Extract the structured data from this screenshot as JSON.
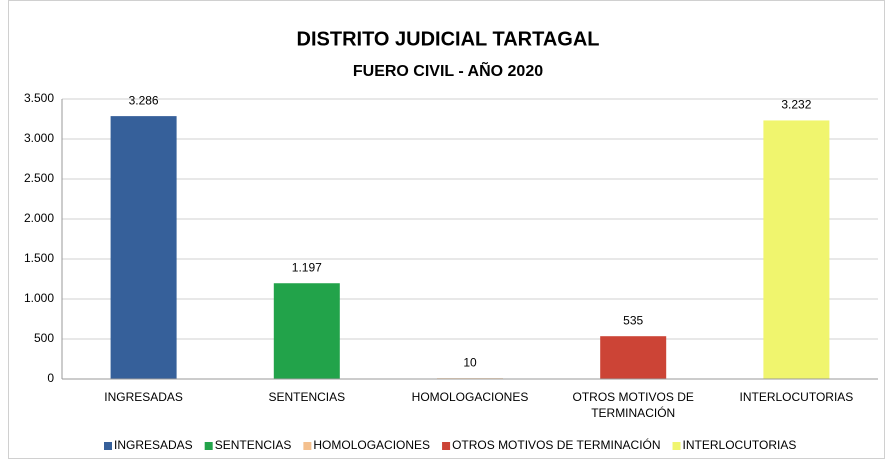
{
  "chart_data": {
    "type": "bar",
    "title": "DISTRITO JUDICIAL TARTAGAL",
    "subtitle": "FUERO CIVIL - AÑO 2020",
    "categories": [
      "INGRESADAS",
      "SENTENCIAS",
      "HOMOLOGACIONES",
      "OTROS MOTIVOS DE TERMINACIÓN",
      "INTERLOCUTORIAS"
    ],
    "values": [
      3286,
      1197,
      10,
      535,
      3232
    ],
    "value_labels": [
      "3.286",
      "1.197",
      "10",
      "535",
      "3.232"
    ],
    "colors": [
      "#36609a",
      "#22a34a",
      "#f4c08e",
      "#cc4436",
      "#f0f56e"
    ],
    "ylim": [
      0,
      3500
    ],
    "yticks": [
      0,
      500,
      {
        "value": 1000,
        "label": "1.000"
      },
      {
        "value": 1500,
        "label": "1.500"
      },
      {
        "value": 2000,
        "label": "2.000"
      },
      {
        "value": 2500,
        "label": "2.500"
      },
      {
        "value": 3000,
        "label": "3.000"
      },
      {
        "value": 3500,
        "label": "3.500"
      }
    ],
    "grid": true,
    "legend": "bottom"
  }
}
